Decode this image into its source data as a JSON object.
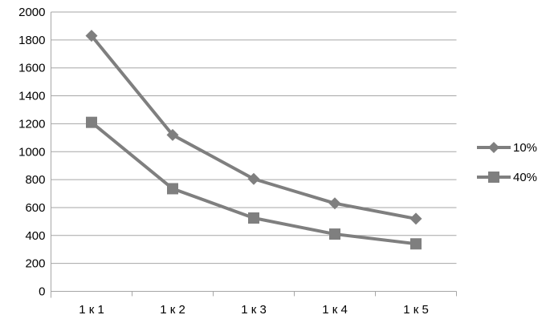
{
  "chart_data": {
    "type": "line",
    "categories": [
      "1 к 1",
      "1 к 2",
      "1 к 3",
      "1 к 4",
      "1 к 5"
    ],
    "series": [
      {
        "name": "10%",
        "marker": "diamond",
        "values": [
          1830,
          1120,
          805,
          630,
          520
        ]
      },
      {
        "name": "40%",
        "marker": "square",
        "values": [
          1210,
          735,
          525,
          410,
          340
        ]
      }
    ],
    "title": "",
    "xlabel": "",
    "ylabel": "",
    "ylim": [
      0,
      2000
    ],
    "ytick_step": 200,
    "yticks": [
      0,
      200,
      400,
      600,
      800,
      1000,
      1200,
      1400,
      1600,
      1800,
      2000
    ],
    "grid": true,
    "legend_position": "right",
    "colors": {
      "series": "#7f7f7f",
      "gridline": "#a6a6a6",
      "axis": "#a6a6a6",
      "text": "#000000",
      "background": "#ffffff"
    }
  }
}
